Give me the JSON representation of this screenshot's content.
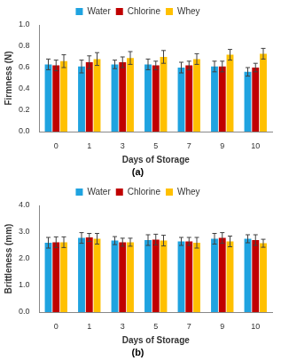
{
  "chart_data": [
    {
      "type": "bar",
      "title": "(a)",
      "x_label": "Days of Storage",
      "y_label": "Firmness (N)",
      "categories": [
        "0",
        "1",
        "3",
        "5",
        "7",
        "9",
        "10"
      ],
      "series": [
        {
          "name": "Water",
          "color": "#1fa3e0",
          "values": [
            0.63,
            0.61,
            0.63,
            0.63,
            0.6,
            0.61,
            0.56
          ],
          "errors": [
            0.05,
            0.06,
            0.04,
            0.05,
            0.05,
            0.05,
            0.04
          ]
        },
        {
          "name": "Chlorine",
          "color": "#c00000",
          "values": [
            0.62,
            0.65,
            0.65,
            0.62,
            0.62,
            0.61,
            0.6
          ],
          "errors": [
            0.05,
            0.06,
            0.05,
            0.04,
            0.04,
            0.05,
            0.04
          ]
        },
        {
          "name": "Whey",
          "color": "#ffc000",
          "values": [
            0.66,
            0.68,
            0.69,
            0.7,
            0.68,
            0.72,
            0.73
          ],
          "errors": [
            0.06,
            0.06,
            0.06,
            0.06,
            0.05,
            0.05,
            0.05
          ]
        }
      ],
      "ylim": [
        0,
        1.0
      ],
      "yticks": [
        {
          "value": 0,
          "label": "0.0"
        },
        {
          "value": 0.2,
          "label": "0.2"
        },
        {
          "value": 0.4,
          "label": "0.4"
        },
        {
          "value": 0.6,
          "label": "0.6"
        },
        {
          "value": 0.8,
          "label": "0.8"
        },
        {
          "value": 1.0,
          "label": "1.0"
        }
      ],
      "grid": false,
      "legend": "top"
    },
    {
      "type": "bar",
      "title": "(b)",
      "x_label": "Days of Storage",
      "y_label": "Brittleness (mm)",
      "categories": [
        "0",
        "1",
        "3",
        "5",
        "7",
        "9",
        "10"
      ],
      "series": [
        {
          "name": "Water",
          "color": "#1fa3e0",
          "values": [
            2.6,
            2.78,
            2.68,
            2.7,
            2.65,
            2.75,
            2.75
          ],
          "errors": [
            0.2,
            0.2,
            0.15,
            0.2,
            0.15,
            0.2,
            0.15
          ]
        },
        {
          "name": "Chlorine",
          "color": "#c00000",
          "values": [
            2.62,
            2.8,
            2.62,
            2.72,
            2.65,
            2.78,
            2.7
          ],
          "errors": [
            0.2,
            0.15,
            0.15,
            0.2,
            0.15,
            0.2,
            0.2
          ]
        },
        {
          "name": "Whey",
          "color": "#ffc000",
          "values": [
            2.62,
            2.75,
            2.62,
            2.68,
            2.6,
            2.65,
            2.58
          ],
          "errors": [
            0.2,
            0.2,
            0.15,
            0.2,
            0.2,
            0.2,
            0.15
          ]
        }
      ],
      "ylim": [
        0,
        4.0
      ],
      "yticks": [
        {
          "value": 0,
          "label": "0.0"
        },
        {
          "value": 1.0,
          "label": "1.0"
        },
        {
          "value": 2.0,
          "label": "2.0"
        },
        {
          "value": 3.0,
          "label": "3.0"
        },
        {
          "value": 4.0,
          "label": "4.0"
        }
      ],
      "grid": false,
      "legend": "top"
    }
  ]
}
